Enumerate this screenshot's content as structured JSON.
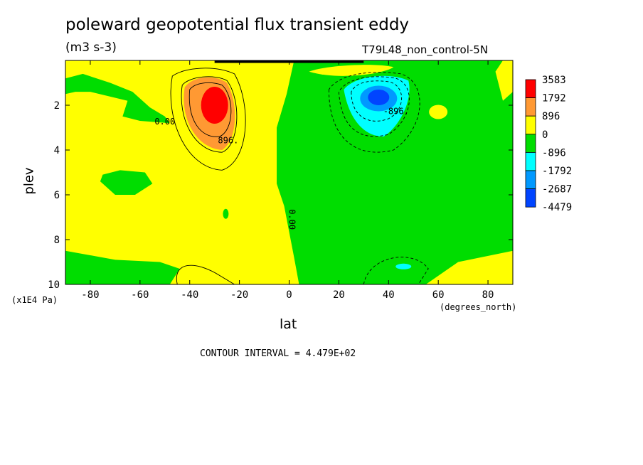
{
  "chart_data": {
    "type": "heatmap",
    "title": "poleward geopotential flux transient eddy",
    "units": "(m3 s-3)",
    "dataset": "T79L48_non_control-5N",
    "xlabel": "lat",
    "xunits": "(degrees_north)",
    "ylabel": "plev",
    "yunits": "(x1E4 Pa)",
    "xlim": [
      -90,
      90
    ],
    "ylim": [
      10,
      0
    ],
    "xticks": [
      -80,
      -60,
      -40,
      -20,
      0,
      20,
      40,
      60,
      80
    ],
    "xtick_labels": [
      "-80",
      "-60",
      "-40",
      "-20",
      "0",
      "20",
      "40",
      "60",
      "80"
    ],
    "yticks": [
      2,
      4,
      6,
      8,
      10
    ],
    "ytick_labels": [
      "2",
      "4",
      "6",
      "8",
      "10"
    ],
    "contour_interval_text": "CONTOUR INTERVAL = 4.479E+02",
    "contour_labels": [
      {
        "text": "0.00",
        "lon": -50,
        "lev": 2.85
      },
      {
        "text": "0.00",
        "lon": -11,
        "lev": 0.1
      },
      {
        "text": "896.",
        "lon": -24.5,
        "lev": 3.7
      },
      {
        "text": "0.00",
        "lon": 0,
        "lev": 7.1
      },
      {
        "text": "-896.",
        "lon": 43,
        "lev": 2.4
      }
    ],
    "colorbar": {
      "labels": [
        "3583",
        "1792",
        "896",
        "0",
        "-896",
        "-1792",
        "-2687",
        "-4479"
      ],
      "colors": [
        "#ff0000",
        "#ff9933",
        "#ffff00",
        "#00dd00",
        "#00ffff",
        "#0099ff",
        "#0044ff"
      ]
    },
    "features": [
      {
        "name": "positive-maximum",
        "lon": -30,
        "lev": 2.0,
        "value": 3583
      },
      {
        "name": "negative-minimum",
        "lon": 36,
        "lev": 1.7,
        "value": -4479
      },
      {
        "name": "secondary-negative",
        "lon": 46,
        "lev": 9.2,
        "value": -896
      }
    ]
  }
}
